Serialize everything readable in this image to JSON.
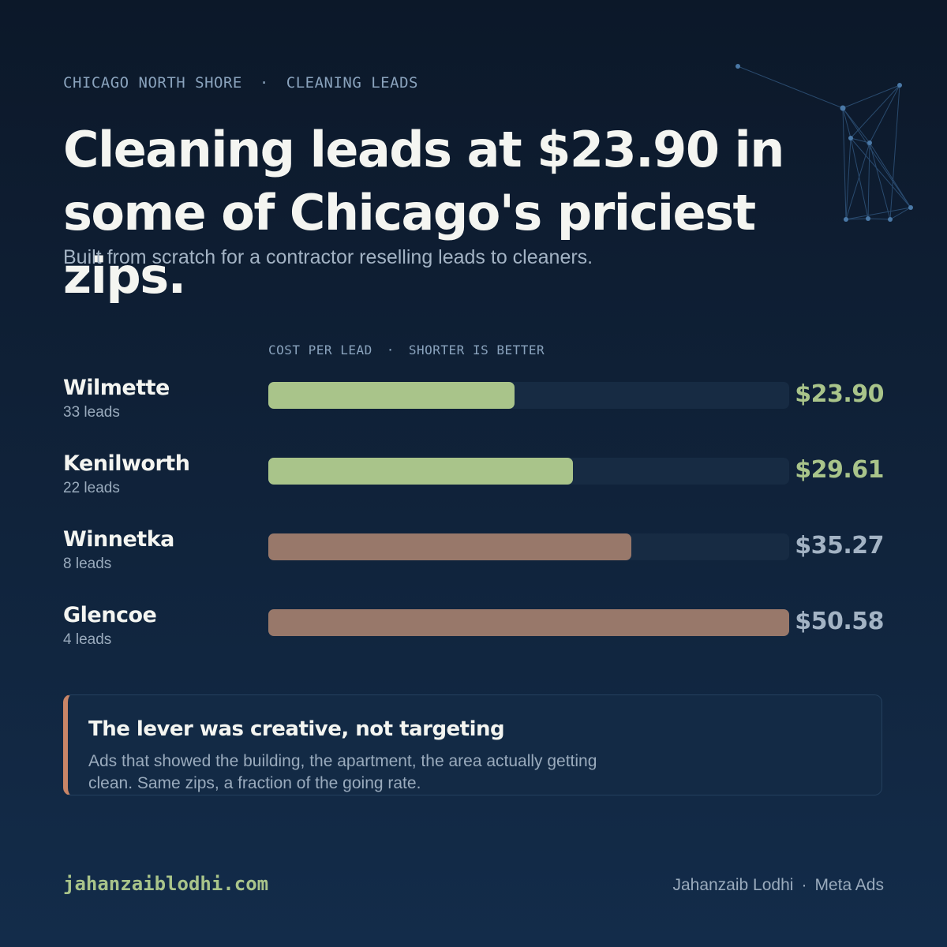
{
  "eyebrow": {
    "location": "CHICAGO NORTH SHORE",
    "separator": "·",
    "category": "CLEANING LEADS"
  },
  "headline": "Cleaning leads at $23.90 in some of Chicago's priciest zips.",
  "subtitle": "Built from scratch for a contractor reselling leads to cleaners.",
  "chart_data": {
    "type": "bar",
    "orientation": "horizontal",
    "label": "COST PER LEAD",
    "label_separator": "·",
    "label_note": "SHORTER IS BETTER",
    "categories": [
      "Wilmette",
      "Kenilworth",
      "Winnetka",
      "Glencoe"
    ],
    "values": [
      23.9,
      29.61,
      35.27,
      50.58
    ],
    "value_labels": [
      "$23.90",
      "$29.61",
      "$35.27",
      "$50.58"
    ],
    "lead_counts": [
      "33 leads",
      "22 leads",
      "8 leads",
      "4 leads"
    ],
    "bar_colors": [
      "#a9c48a",
      "#a9c48a",
      "#98786a",
      "#98786a"
    ],
    "value_colors": [
      "#a9c48a",
      "#a9c48a",
      "#a3b3c4",
      "#a3b3c4"
    ],
    "xlim": [
      0,
      50.58
    ]
  },
  "callout": {
    "title": "The lever was creative, not targeting",
    "body": "Ads that showed the building, the apartment, the area actually getting clean. Same zips, a fraction of the going rate.",
    "accent_color": "#c98567"
  },
  "footer": {
    "site": "jahanzaiblodhi.com",
    "author": "Jahanzaib Lodhi",
    "separator": "·",
    "service": "Meta Ads"
  },
  "colors": {
    "background": "#0f2036",
    "track": "#172b43",
    "accent_green": "#a9c48a",
    "muted_brown": "#98786a"
  },
  "icons": {
    "decoration": "network-constellation-icon"
  }
}
